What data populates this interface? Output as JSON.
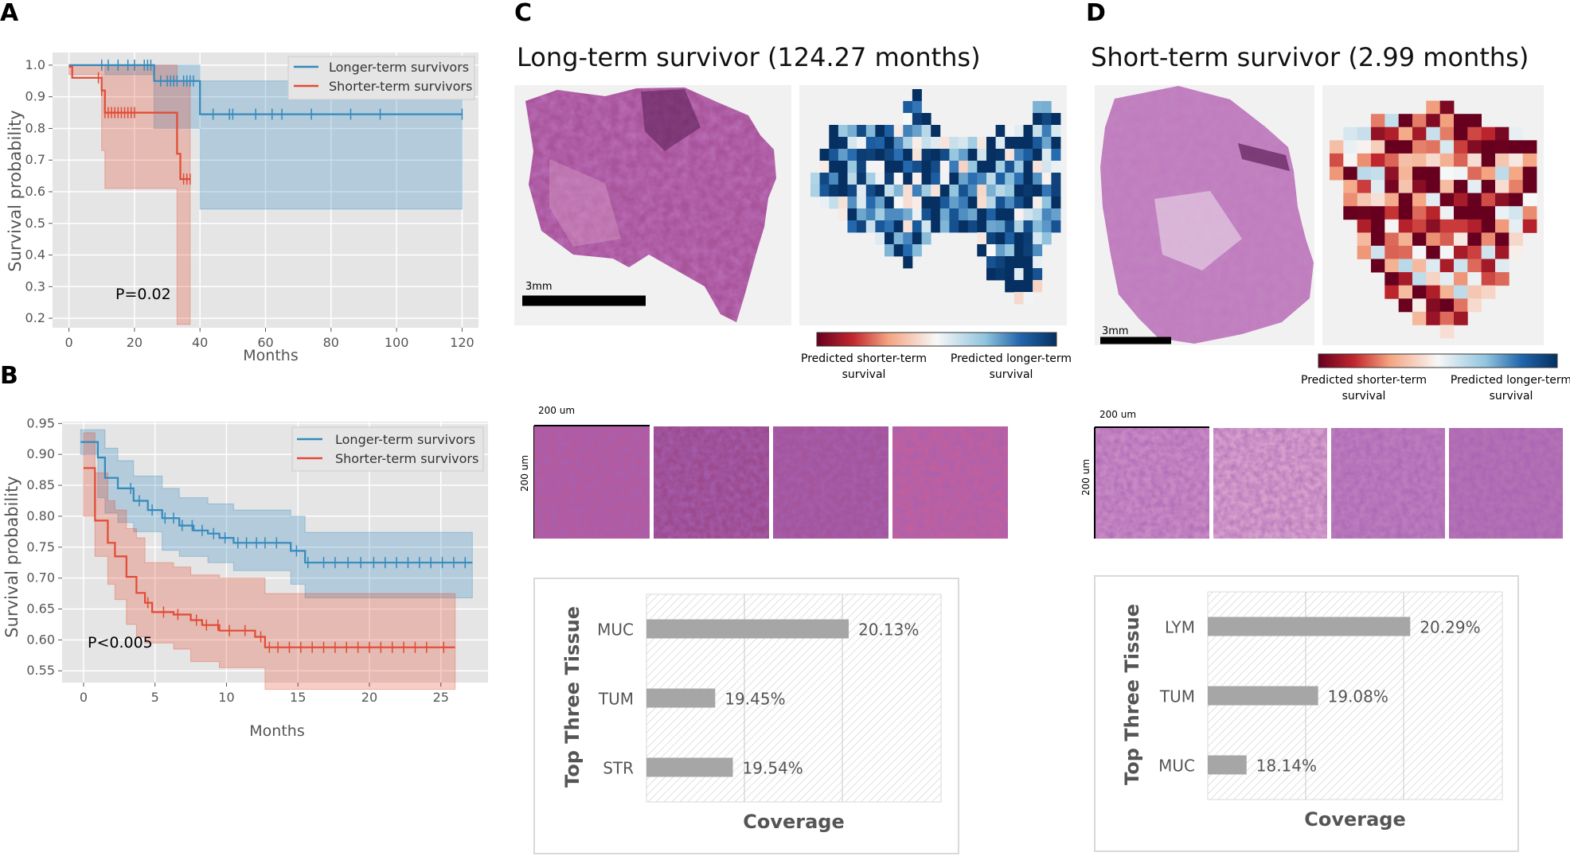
{
  "panel_labels": {
    "a": "A",
    "b": "B",
    "c": "C",
    "d": "D"
  },
  "colors": {
    "blue": "#348abd",
    "red": "#e24a33",
    "plot_bg": "#e5e5e5",
    "bar_gray": "#a6a6a6"
  },
  "panel_c": {
    "title": "Long-term survivor (124.27 months)",
    "scale_wsi": "3mm",
    "scale_patch": "200 um",
    "colorbar": {
      "left_label_1": "Predicted shorter-term",
      "left_label_2": "survival",
      "right_label_1": "Predicted longer-term",
      "right_label_2": "survival"
    }
  },
  "panel_d": {
    "title": "Short-term survivor (2.99 months)",
    "scale_wsi": "3mm",
    "scale_patch": "200 um",
    "colorbar": {
      "left_label_1": "Predicted shorter-term",
      "left_label_2": "survival",
      "right_label_1": "Predicted longer-term",
      "right_label_2": "survival"
    }
  },
  "chart_data": [
    {
      "id": "km_a",
      "type": "line",
      "title": "",
      "xlabel": "Months",
      "ylabel": "Survival probability",
      "xlim": [
        -5,
        125
      ],
      "ylim": [
        0.17,
        1.04
      ],
      "xticks": [
        0,
        20,
        40,
        60,
        80,
        100,
        120
      ],
      "yticks": [
        0.2,
        0.3,
        0.4,
        0.5,
        0.6,
        0.7,
        0.8,
        0.9,
        1.0
      ],
      "ytick_labels": [
        "0.2",
        "0.3",
        "0.4",
        "0.5",
        "0.6",
        "0.7",
        "0.8",
        "0.9",
        "1.0"
      ],
      "annotation": "P=0.02",
      "legend_position": "top-right",
      "series": [
        {
          "name": "Longer-term survivors",
          "color": "#348abd",
          "steps": [
            [
              0,
              1.0
            ],
            [
              26,
              0.95
            ],
            [
              40,
              0.845
            ],
            [
              120,
              0.845
            ]
          ],
          "ci_upper": [
            [
              0,
              1.0
            ],
            [
              26,
              1.0
            ],
            [
              40,
              0.95
            ],
            [
              120,
              0.95
            ]
          ],
          "ci_lower": [
            [
              0,
              1.0
            ],
            [
              11,
              0.97
            ],
            [
              26,
              0.8
            ],
            [
              40,
              0.545
            ],
            [
              120,
              0.545
            ]
          ],
          "censors": [
            10,
            12,
            15,
            18,
            20,
            23,
            24,
            25,
            28,
            30,
            31,
            32,
            33,
            35,
            36,
            37,
            38,
            44,
            49,
            50,
            57,
            62,
            65,
            74,
            86,
            95,
            120
          ]
        },
        {
          "name": "Shorter-term survivors",
          "color": "#e24a33",
          "steps": [
            [
              0,
              0.995
            ],
            [
              1,
              0.96
            ],
            [
              10,
              0.92
            ],
            [
              11,
              0.85
            ],
            [
              33,
              0.72
            ],
            [
              34,
              0.64
            ],
            [
              37,
              0.64
            ]
          ],
          "ci_upper": [
            [
              0,
              1.0
            ],
            [
              10,
              1.0
            ],
            [
              33,
              0.95
            ],
            [
              37,
              0.95
            ]
          ],
          "ci_lower": [
            [
              0,
              0.97
            ],
            [
              10,
              0.73
            ],
            [
              11,
              0.61
            ],
            [
              33,
              0.18
            ],
            [
              37,
              0.18
            ]
          ],
          "censors": [
            9,
            10,
            11,
            12,
            13,
            14,
            15,
            16,
            17,
            18,
            19,
            20,
            35,
            36,
            37
          ]
        }
      ]
    },
    {
      "id": "km_b",
      "type": "line",
      "title": "",
      "xlabel": "Months",
      "ylabel": "Survival probability",
      "xlim": [
        -1.5,
        28.3
      ],
      "ylim": [
        0.531,
        0.953
      ],
      "xticks": [
        0,
        5,
        10,
        15,
        20,
        25
      ],
      "yticks": [
        0.55,
        0.6,
        0.65,
        0.7,
        0.75,
        0.8,
        0.85,
        0.9,
        0.95
      ],
      "ytick_labels": [
        "0.55",
        "0.60",
        "0.65",
        "0.70",
        "0.75",
        "0.80",
        "0.85",
        "0.90",
        "0.95"
      ],
      "annotation": "P<0.005",
      "legend_position": "top-right",
      "series": [
        {
          "name": "Longer-term survivors",
          "color": "#348abd",
          "steps": [
            [
              -0.2,
              0.92
            ],
            [
              1,
              0.895
            ],
            [
              1.5,
              0.862
            ],
            [
              2.4,
              0.845
            ],
            [
              3.5,
              0.825
            ],
            [
              4.5,
              0.81
            ],
            [
              5.5,
              0.797
            ],
            [
              6.7,
              0.785
            ],
            [
              7.7,
              0.777
            ],
            [
              8.7,
              0.772
            ],
            [
              9.5,
              0.765
            ],
            [
              10.5,
              0.757
            ],
            [
              14.5,
              0.744
            ],
            [
              15.5,
              0.725
            ],
            [
              27.2,
              0.725
            ]
          ],
          "ci_upper": [
            [
              -0.2,
              0.94
            ],
            [
              1,
              0.94
            ],
            [
              1.5,
              0.91
            ],
            [
              2.4,
              0.89
            ],
            [
              3.5,
              0.865
            ],
            [
              5.5,
              0.845
            ],
            [
              6.7,
              0.83
            ],
            [
              8.7,
              0.82
            ],
            [
              10.5,
              0.81
            ],
            [
              14.5,
              0.8
            ],
            [
              15.5,
              0.774
            ],
            [
              27.2,
              0.774
            ]
          ],
          "ci_lower": [
            [
              -0.2,
              0.9
            ],
            [
              1,
              0.83
            ],
            [
              1.5,
              0.805
            ],
            [
              2.4,
              0.79
            ],
            [
              3.5,
              0.775
            ],
            [
              5.5,
              0.745
            ],
            [
              6.7,
              0.735
            ],
            [
              8.7,
              0.725
            ],
            [
              10.5,
              0.712
            ],
            [
              14.5,
              0.69
            ],
            [
              15.5,
              0.668
            ],
            [
              27.2,
              0.668
            ]
          ],
          "censors": [
            3.3,
            3.9,
            4.8,
            5.7,
            6.3,
            6.9,
            7.6,
            8.3,
            9.1,
            9.9,
            10.8,
            11.4,
            12.1,
            12.7,
            13.5,
            14.9,
            15.7,
            16.8,
            17.6,
            18.5,
            19.4,
            20.3,
            21.1,
            21.9,
            22.7,
            23.5,
            24.3,
            25.1,
            25.9,
            26.7
          ]
        },
        {
          "name": "Shorter-term survivors",
          "color": "#e24a33",
          "steps": [
            [
              0,
              0.878
            ],
            [
              0.8,
              0.793
            ],
            [
              1.7,
              0.757
            ],
            [
              2.2,
              0.735
            ],
            [
              3.0,
              0.702
            ],
            [
              3.7,
              0.676
            ],
            [
              4.3,
              0.66
            ],
            [
              4.8,
              0.645
            ],
            [
              6.3,
              0.641
            ],
            [
              7.5,
              0.632
            ],
            [
              8.3,
              0.624
            ],
            [
              9.5,
              0.615
            ],
            [
              12.0,
              0.605
            ],
            [
              12.7,
              0.588
            ],
            [
              26.0,
              0.588
            ]
          ],
          "ci_upper": [
            [
              0,
              0.935
            ],
            [
              0.8,
              0.87
            ],
            [
              1.7,
              0.825
            ],
            [
              2.2,
              0.81
            ],
            [
              3.0,
              0.78
            ],
            [
              3.7,
              0.765
            ],
            [
              4.3,
              0.725
            ],
            [
              6.3,
              0.718
            ],
            [
              7.5,
              0.705
            ],
            [
              9.5,
              0.7
            ],
            [
              12.7,
              0.675
            ],
            [
              26.0,
              0.675
            ]
          ],
          "ci_lower": [
            [
              0,
              0.8
            ],
            [
              0.8,
              0.735
            ],
            [
              1.7,
              0.69
            ],
            [
              2.2,
              0.665
            ],
            [
              3.0,
              0.625
            ],
            [
              3.7,
              0.605
            ],
            [
              4.3,
              0.595
            ],
            [
              6.3,
              0.585
            ],
            [
              7.5,
              0.565
            ],
            [
              9.5,
              0.555
            ],
            [
              12.7,
              0.52
            ],
            [
              26.0,
              0.52
            ]
          ],
          "censors": [
            4.5,
            5.6,
            6.6,
            7.9,
            8.6,
            9.4,
            10.2,
            11.3,
            12.4,
            13.0,
            13.6,
            14.4,
            15.2,
            16.0,
            16.8,
            17.6,
            18.4,
            19.2,
            20.0,
            20.8,
            21.6,
            22.4,
            23.2,
            24.0,
            25.2
          ]
        }
      ]
    },
    {
      "id": "cov_c",
      "type": "bar",
      "orientation": "horizontal",
      "categories": [
        "MUC",
        "TUM",
        "STR"
      ],
      "values": [
        20.13,
        19.45,
        19.54
      ],
      "value_labels": [
        "20.13%",
        "19.45%",
        "19.54%"
      ],
      "xlabel": "Coverage",
      "ylabel": "Top Three Tissue"
    },
    {
      "id": "cov_d",
      "type": "bar",
      "orientation": "horizontal",
      "categories": [
        "LYM",
        "TUM",
        "MUC"
      ],
      "values": [
        20.29,
        19.08,
        18.14
      ],
      "value_labels": [
        "20.29%",
        "19.08%",
        "18.14%"
      ],
      "xlabel": "Coverage",
      "ylabel": "Top Three Tissue"
    },
    {
      "id": "heat_c",
      "type": "heatmap",
      "scale": "predicted risk: -1 = shorter-term (red), +1 = longer-term (blue)",
      "rows": [
        "...........x...............",
        "..........xx............xx..",
        "..........xxx...........xxx.",
        "..xxxxxxxxxxxx......xxxxxxxx",
        "..xxxxxxxxxxxxxxxxxxxxxxxxxx",
        ".xxxxxxxxxxxxxxxxxxxxxxxxxxx",
        ".xxxxxxxxxxxxxxxxxxxxxxxxxxx",
        "xxxxxxxxxxxxxxxxxxxxxxxxxxxx",
        "xxxxxxxxxxxxxxxxxxxxxxxxxxxx",
        ".xxxxxxxxxxxxxxxxxxxxxxxxxxx",
        "...xxxxxxxxxxxxxxxxxxxxxxxxx",
        "....xxxxxxxxxxxxxxxxxxxxxxx.",
        ".......xxxxxx.....xxxxxxxx..",
        "........xxxx......xxxxxxx...",
        "..........x........xxxxxx...",
        "...................xxxxxx...",
        ".....................xxxx...",
        "......................xx...."
      ],
      "bias": 0.6
    },
    {
      "id": "heat_d",
      "type": "heatmap",
      "scale": "predicted risk: -1 = shorter-term (red), +1 = longer-term (blue)",
      "rows": [
        "...............",
        ".......xx......",
        "...xxxxxxxx....",
        ".xxxxxxxxxxxxx.",
        "xxxxxxxxxxxxxxx",
        "xxxxxxxxxxxxxxx",
        "xxxxxxxxxxxxxxx",
        ".xxxxxxxxxxxxxx",
        ".xxxxxxxxxxxxxx",
        ".xxxxxxxxxxxxxx",
        "..xxxxxxxxxxxxx",
        "..xxxxxxxxxxxx.",
        "..xxxxxxxxxxxx.",
        "...xxxxxxxxxx..",
        "....xxxxxxxxx..",
        "....xxxxxxxx...",
        ".....xxxxxx....",
        "......xxxx.....",
        "........x......"
      ],
      "bias": -0.55
    }
  ]
}
